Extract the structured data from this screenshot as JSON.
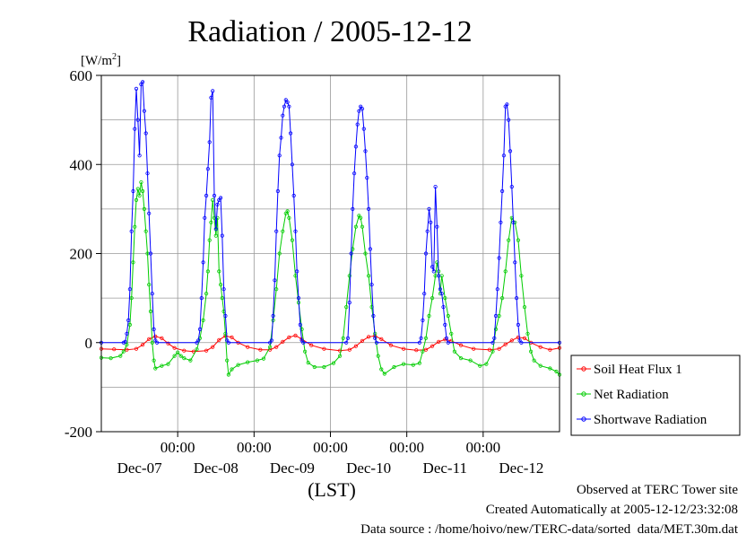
{
  "chart_data": {
    "type": "line",
    "title": "Radiation / 2005-12-12",
    "unit_label": "[W/m",
    "unit_sup": "2",
    "unit_close": "]",
    "xlabel": "(LST)",
    "ylim": [
      -200,
      600
    ],
    "yticks": [
      600,
      400,
      200,
      0,
      -200
    ],
    "y_tick_labels": [
      "600",
      "400",
      "200",
      "0",
      "-200"
    ],
    "x_tick_hours": [
      48,
      96,
      144,
      192,
      240
    ],
    "x_tick_time": "00:00",
    "x_day_labels": [
      {
        "label": "Dec-07",
        "hour": 24
      },
      {
        "label": "Dec-08",
        "hour": 72
      },
      {
        "label": "Dec-09",
        "hour": 120
      },
      {
        "label": "Dec-10",
        "hour": 168
      },
      {
        "label": "Dec-11",
        "hour": 216
      },
      {
        "label": "Dec-12",
        "hour": 264
      }
    ],
    "xlim_hours": [
      0,
      288
    ],
    "grid": true,
    "legend_position": "bottom-right",
    "series": [
      {
        "name": "Soil Heat Flux 1",
        "color": "#ff0000",
        "points": [
          [
            0,
            -14
          ],
          [
            8,
            -15
          ],
          [
            16,
            -16
          ],
          [
            22,
            -14
          ],
          [
            26,
            -5
          ],
          [
            30,
            8
          ],
          [
            34,
            14
          ],
          [
            38,
            10
          ],
          [
            42,
            -2
          ],
          [
            46,
            -12
          ],
          [
            52,
            -18
          ],
          [
            58,
            -20
          ],
          [
            66,
            -18
          ],
          [
            70,
            -10
          ],
          [
            74,
            6
          ],
          [
            78,
            15
          ],
          [
            82,
            12
          ],
          [
            86,
            0
          ],
          [
            92,
            -10
          ],
          [
            100,
            -16
          ],
          [
            106,
            -16
          ],
          [
            110,
            -10
          ],
          [
            114,
            2
          ],
          [
            118,
            12
          ],
          [
            122,
            16
          ],
          [
            126,
            8
          ],
          [
            132,
            -6
          ],
          [
            140,
            -14
          ],
          [
            150,
            -18
          ],
          [
            156,
            -16
          ],
          [
            160,
            -8
          ],
          [
            164,
            4
          ],
          [
            168,
            13
          ],
          [
            172,
            15
          ],
          [
            176,
            8
          ],
          [
            182,
            -6
          ],
          [
            190,
            -14
          ],
          [
            198,
            -17
          ],
          [
            204,
            -16
          ],
          [
            208,
            -8
          ],
          [
            212,
            2
          ],
          [
            216,
            7
          ],
          [
            220,
            4
          ],
          [
            226,
            -6
          ],
          [
            234,
            -14
          ],
          [
            244,
            -16
          ],
          [
            250,
            -14
          ],
          [
            254,
            -4
          ],
          [
            258,
            5
          ],
          [
            262,
            12
          ],
          [
            266,
            10
          ],
          [
            270,
            0
          ],
          [
            276,
            -10
          ],
          [
            282,
            -16
          ],
          [
            288,
            -12
          ]
        ]
      },
      {
        "name": "Net Radiation",
        "color": "#00cc00",
        "points": [
          [
            0,
            -34
          ],
          [
            6,
            -35
          ],
          [
            12,
            -30
          ],
          [
            14,
            -20
          ],
          [
            16,
            -5
          ],
          [
            18,
            40
          ],
          [
            19,
            100
          ],
          [
            20,
            180
          ],
          [
            21,
            260
          ],
          [
            22,
            320
          ],
          [
            23,
            345
          ],
          [
            24,
            330
          ],
          [
            25,
            360
          ],
          [
            26,
            340
          ],
          [
            27,
            300
          ],
          [
            28,
            250
          ],
          [
            29,
            200
          ],
          [
            30,
            130
          ],
          [
            31,
            70
          ],
          [
            32,
            0
          ],
          [
            33,
            -40
          ],
          [
            34,
            -58
          ],
          [
            38,
            -52
          ],
          [
            42,
            -48
          ],
          [
            46,
            -30
          ],
          [
            48,
            -22
          ],
          [
            50,
            -30
          ],
          [
            52,
            -35
          ],
          [
            56,
            -40
          ],
          [
            60,
            -15
          ],
          [
            62,
            10
          ],
          [
            64,
            50
          ],
          [
            66,
            110
          ],
          [
            67,
            160
          ],
          [
            68,
            230
          ],
          [
            69,
            270
          ],
          [
            70,
            320
          ],
          [
            71,
            280
          ],
          [
            72,
            240
          ],
          [
            73,
            280
          ],
          [
            74,
            160
          ],
          [
            75,
            130
          ],
          [
            76,
            100
          ],
          [
            77,
            70
          ],
          [
            78,
            20
          ],
          [
            79,
            -40
          ],
          [
            80,
            -72
          ],
          [
            82,
            -60
          ],
          [
            86,
            -50
          ],
          [
            92,
            -44
          ],
          [
            98,
            -40
          ],
          [
            102,
            -36
          ],
          [
            106,
            -10
          ],
          [
            108,
            50
          ],
          [
            110,
            120
          ],
          [
            112,
            200
          ],
          [
            114,
            250
          ],
          [
            116,
            290
          ],
          [
            117,
            295
          ],
          [
            118,
            280
          ],
          [
            120,
            230
          ],
          [
            122,
            150
          ],
          [
            124,
            90
          ],
          [
            126,
            30
          ],
          [
            128,
            -20
          ],
          [
            130,
            -45
          ],
          [
            134,
            -55
          ],
          [
            140,
            -55
          ],
          [
            146,
            -46
          ],
          [
            150,
            -30
          ],
          [
            152,
            10
          ],
          [
            154,
            80
          ],
          [
            156,
            150
          ],
          [
            158,
            210
          ],
          [
            160,
            260
          ],
          [
            162,
            285
          ],
          [
            163,
            280
          ],
          [
            164,
            260
          ],
          [
            166,
            200
          ],
          [
            168,
            150
          ],
          [
            170,
            80
          ],
          [
            172,
            20
          ],
          [
            174,
            -30
          ],
          [
            176,
            -60
          ],
          [
            178,
            -70
          ],
          [
            184,
            -55
          ],
          [
            190,
            -48
          ],
          [
            196,
            -50
          ],
          [
            200,
            -46
          ],
          [
            202,
            -20
          ],
          [
            204,
            10
          ],
          [
            206,
            60
          ],
          [
            208,
            100
          ],
          [
            210,
            150
          ],
          [
            211,
            180
          ],
          [
            212,
            160
          ],
          [
            213,
            110
          ],
          [
            214,
            150
          ],
          [
            216,
            100
          ],
          [
            218,
            60
          ],
          [
            220,
            20
          ],
          [
            222,
            -20
          ],
          [
            226,
            -35
          ],
          [
            232,
            -40
          ],
          [
            238,
            -52
          ],
          [
            242,
            -48
          ],
          [
            246,
            -20
          ],
          [
            248,
            30
          ],
          [
            250,
            60
          ],
          [
            252,
            100
          ],
          [
            254,
            160
          ],
          [
            256,
            230
          ],
          [
            258,
            280
          ],
          [
            260,
            270
          ],
          [
            262,
            230
          ],
          [
            264,
            150
          ],
          [
            266,
            80
          ],
          [
            268,
            20
          ],
          [
            270,
            -20
          ],
          [
            272,
            -40
          ],
          [
            276,
            -52
          ],
          [
            282,
            -58
          ],
          [
            286,
            -65
          ],
          [
            288,
            -72
          ]
        ]
      },
      {
        "name": "Shortwave Radiation",
        "color": "#0000ff",
        "points": [
          [
            0,
            0
          ],
          [
            14,
            0
          ],
          [
            15,
            2
          ],
          [
            16,
            20
          ],
          [
            17,
            50
          ],
          [
            18,
            120
          ],
          [
            19,
            250
          ],
          [
            20,
            340
          ],
          [
            21,
            480
          ],
          [
            22,
            570
          ],
          [
            23,
            500
          ],
          [
            24,
            420
          ],
          [
            25,
            580
          ],
          [
            26,
            585
          ],
          [
            27,
            520
          ],
          [
            28,
            470
          ],
          [
            29,
            380
          ],
          [
            30,
            290
          ],
          [
            31,
            200
          ],
          [
            32,
            110
          ],
          [
            33,
            30
          ],
          [
            34,
            5
          ],
          [
            35,
            0
          ],
          [
            60,
            0
          ],
          [
            61,
            5
          ],
          [
            62,
            30
          ],
          [
            63,
            100
          ],
          [
            64,
            180
          ],
          [
            65,
            280
          ],
          [
            66,
            330
          ],
          [
            67,
            390
          ],
          [
            68,
            450
          ],
          [
            69,
            550
          ],
          [
            70,
            565
          ],
          [
            71,
            330
          ],
          [
            72,
            255
          ],
          [
            73,
            310
          ],
          [
            74,
            320
          ],
          [
            75,
            325
          ],
          [
            76,
            240
          ],
          [
            77,
            120
          ],
          [
            78,
            60
          ],
          [
            79,
            5
          ],
          [
            80,
            0
          ],
          [
            106,
            0
          ],
          [
            107,
            5
          ],
          [
            108,
            60
          ],
          [
            109,
            140
          ],
          [
            110,
            250
          ],
          [
            111,
            340
          ],
          [
            112,
            420
          ],
          [
            113,
            460
          ],
          [
            114,
            510
          ],
          [
            115,
            530
          ],
          [
            116,
            545
          ],
          [
            117,
            540
          ],
          [
            118,
            530
          ],
          [
            119,
            470
          ],
          [
            120,
            400
          ],
          [
            121,
            330
          ],
          [
            122,
            250
          ],
          [
            123,
            160
          ],
          [
            124,
            100
          ],
          [
            125,
            40
          ],
          [
            126,
            5
          ],
          [
            127,
            0
          ],
          [
            154,
            0
          ],
          [
            155,
            10
          ],
          [
            156,
            90
          ],
          [
            157,
            200
          ],
          [
            158,
            300
          ],
          [
            159,
            380
          ],
          [
            160,
            440
          ],
          [
            161,
            490
          ],
          [
            162,
            520
          ],
          [
            163,
            530
          ],
          [
            164,
            525
          ],
          [
            165,
            480
          ],
          [
            166,
            430
          ],
          [
            167,
            370
          ],
          [
            168,
            300
          ],
          [
            169,
            210
          ],
          [
            170,
            130
          ],
          [
            171,
            60
          ],
          [
            172,
            10
          ],
          [
            173,
            0
          ],
          [
            200,
            0
          ],
          [
            201,
            10
          ],
          [
            202,
            50
          ],
          [
            203,
            110
          ],
          [
            204,
            200
          ],
          [
            205,
            250
          ],
          [
            206,
            300
          ],
          [
            207,
            270
          ],
          [
            208,
            170
          ],
          [
            209,
            160
          ],
          [
            210,
            350
          ],
          [
            211,
            260
          ],
          [
            212,
            150
          ],
          [
            213,
            120
          ],
          [
            214,
            110
          ],
          [
            215,
            80
          ],
          [
            216,
            40
          ],
          [
            217,
            10
          ],
          [
            218,
            0
          ],
          [
            246,
            0
          ],
          [
            247,
            10
          ],
          [
            248,
            60
          ],
          [
            249,
            120
          ],
          [
            250,
            190
          ],
          [
            251,
            270
          ],
          [
            252,
            340
          ],
          [
            253,
            420
          ],
          [
            254,
            530
          ],
          [
            255,
            535
          ],
          [
            256,
            500
          ],
          [
            257,
            430
          ],
          [
            258,
            350
          ],
          [
            259,
            270
          ],
          [
            260,
            180
          ],
          [
            261,
            100
          ],
          [
            262,
            40
          ],
          [
            263,
            5
          ],
          [
            264,
            0
          ],
          [
            288,
            0
          ]
        ]
      }
    ]
  },
  "footer": {
    "observed": "Observed at TERC Tower site",
    "created": "Created Automatically at 2005-12-12/23:32:08",
    "source": "Data source : /home/hoivo/new/TERC-data/sorted  data/MET.30m.dat"
  }
}
